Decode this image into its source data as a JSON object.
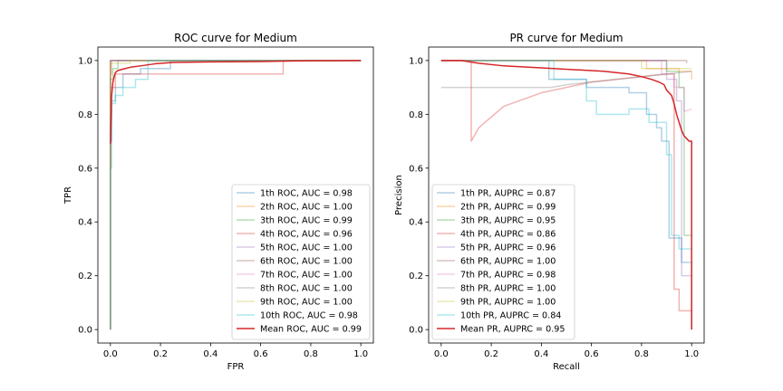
{
  "chart_data": [
    {
      "type": "line",
      "title": "ROC curve for Medium",
      "xlabel": "FPR",
      "ylabel": "TPR",
      "xlim": [
        -0.05,
        1.05
      ],
      "ylim": [
        -0.05,
        1.05
      ],
      "xticks": [
        "0.0",
        "0.2",
        "0.4",
        "0.6",
        "0.8",
        "1.0"
      ],
      "yticks": [
        "0.0",
        "0.2",
        "0.4",
        "0.6",
        "0.8",
        "1.0"
      ],
      "grid": false,
      "legend_position": "lower-right",
      "series": [
        {
          "name": "1th ROC, AUC = 0.98",
          "color": "#1f77b4",
          "alpha": 0.35,
          "x": [
            0,
            0,
            0.005,
            0.005,
            0.02,
            0.02,
            0.05,
            0.05,
            0.12,
            0.12,
            0.24,
            0.24,
            1.0
          ],
          "y": [
            0,
            0.7,
            0.7,
            0.85,
            0.85,
            0.9,
            0.9,
            0.95,
            0.95,
            0.97,
            0.97,
            1.0,
            1.0
          ]
        },
        {
          "name": "2th ROC, AUC = 1.00",
          "color": "#ff7f0e",
          "alpha": 0.35,
          "x": [
            0,
            0,
            0.005,
            0.005,
            1.0
          ],
          "y": [
            0,
            0.95,
            0.95,
            1.0,
            1.0
          ]
        },
        {
          "name": "3th ROC, AUC = 0.99",
          "color": "#2ca02c",
          "alpha": 0.35,
          "x": [
            0,
            0,
            0.01,
            0.01,
            0.03,
            0.03,
            1.0
          ],
          "y": [
            0,
            0.93,
            0.93,
            0.97,
            0.97,
            1.0,
            1.0
          ]
        },
        {
          "name": "4th ROC, AUC = 0.96",
          "color": "#d62728",
          "alpha": 0.35,
          "x": [
            0,
            0,
            0.02,
            0.02,
            0.69,
            0.69,
            1.0
          ],
          "y": [
            0,
            0.9,
            0.9,
            0.95,
            0.95,
            1.0,
            1.0
          ]
        },
        {
          "name": "5th ROC, AUC = 1.00",
          "color": "#9467bd",
          "alpha": 0.35,
          "x": [
            0,
            0,
            1.0
          ],
          "y": [
            0,
            1.0,
            1.0
          ]
        },
        {
          "name": "6th ROC, AUC = 1.00",
          "color": "#8c564b",
          "alpha": 0.35,
          "x": [
            0,
            0,
            1.0
          ],
          "y": [
            0,
            1.0,
            1.0
          ]
        },
        {
          "name": "7th ROC, AUC = 1.00",
          "color": "#e377c2",
          "alpha": 0.35,
          "x": [
            0,
            0,
            1.0
          ],
          "y": [
            0,
            1.0,
            1.0
          ]
        },
        {
          "name": "8th ROC, AUC = 1.00",
          "color": "#7f7f7f",
          "alpha": 0.35,
          "x": [
            0,
            0,
            1.0
          ],
          "y": [
            0,
            1.0,
            1.0
          ]
        },
        {
          "name": "9th ROC, AUC = 1.00",
          "color": "#bcbd22",
          "alpha": 0.35,
          "x": [
            0,
            0,
            0.08,
            0.08,
            1.0
          ],
          "y": [
            0,
            0.99,
            0.99,
            1.0,
            1.0
          ]
        },
        {
          "name": "10th ROC, AUC = 0.98",
          "color": "#17becf",
          "alpha": 0.35,
          "x": [
            0,
            0,
            0.005,
            0.005,
            0.02,
            0.02,
            0.05,
            0.05,
            0.1,
            0.1,
            0.15,
            0.15,
            1.0
          ],
          "y": [
            0,
            0.6,
            0.6,
            0.84,
            0.84,
            0.87,
            0.87,
            0.9,
            0.9,
            0.93,
            0.93,
            1.0,
            1.0
          ]
        },
        {
          "name": "Mean ROC, AUC = 0.99",
          "color": "#d62728",
          "alpha": 1.0,
          "width": 1.5,
          "x": [
            0,
            0.005,
            0.01,
            0.015,
            0.02,
            0.03,
            0.05,
            0.08,
            0.12,
            0.18,
            0.25,
            0.4,
            0.6,
            0.7,
            0.8,
            1.0
          ],
          "y": [
            0.69,
            0.87,
            0.92,
            0.94,
            0.955,
            0.963,
            0.968,
            0.975,
            0.98,
            0.988,
            0.993,
            0.995,
            0.996,
            0.998,
            0.999,
            1.0
          ]
        }
      ]
    },
    {
      "type": "line",
      "title": "PR curve for Medium",
      "xlabel": "Recall",
      "ylabel": "Precision",
      "xlim": [
        -0.05,
        1.05
      ],
      "ylim": [
        -0.05,
        1.05
      ],
      "xticks": [
        "0.0",
        "0.2",
        "0.4",
        "0.6",
        "0.8",
        "1.0"
      ],
      "yticks": [
        "0.0",
        "0.2",
        "0.4",
        "0.6",
        "0.8",
        "1.0"
      ],
      "grid": false,
      "legend_position": "lower-left",
      "series": [
        {
          "name": "1th PR, AUPRC = 0.87",
          "color": "#1f77b4",
          "alpha": 0.35,
          "x": [
            0,
            0.43,
            0.43,
            0.58,
            0.58,
            0.75,
            0.75,
            0.82,
            0.82,
            0.86,
            0.86,
            0.88,
            0.88,
            0.91,
            0.91,
            0.96,
            0.96,
            1.0,
            1.0
          ],
          "y": [
            1.0,
            1.0,
            0.93,
            0.93,
            0.9,
            0.9,
            0.88,
            0.88,
            0.8,
            0.8,
            0.75,
            0.75,
            0.7,
            0.7,
            0.34,
            0.34,
            0.25,
            0.25,
            0
          ]
        },
        {
          "name": "2th PR, AUPRC = 0.99",
          "color": "#ff7f0e",
          "alpha": 0.35,
          "x": [
            0,
            0.82,
            0.82,
            0.95,
            0.95,
            1.0,
            1.0
          ],
          "y": [
            1.0,
            1.0,
            0.97,
            0.97,
            0.96,
            0.96,
            0.93
          ]
        },
        {
          "name": "3th PR, AUPRC = 0.95",
          "color": "#2ca02c",
          "alpha": 0.35,
          "x": [
            0,
            0.9,
            0.9,
            0.95,
            0.95,
            0.97,
            0.97,
            1.0
          ],
          "y": [
            1.0,
            1.0,
            0.96,
            0.96,
            0.9,
            0.9,
            0.35,
            0.35
          ]
        },
        {
          "name": "4th PR, AUPRC = 0.86",
          "color": "#d62728",
          "alpha": 0.35,
          "x": [
            0,
            0.12,
            0.12,
            0.15,
            0.25,
            0.4,
            0.6,
            0.8,
            0.9,
            0.93,
            0.93,
            0.95,
            0.95,
            1.0
          ],
          "y": [
            1.0,
            1.0,
            0.7,
            0.75,
            0.83,
            0.88,
            0.92,
            0.94,
            0.95,
            0.95,
            0.15,
            0.15,
            0.07,
            0.07
          ]
        },
        {
          "name": "5th PR, AUPRC = 0.96",
          "color": "#9467bd",
          "alpha": 0.35,
          "x": [
            0,
            0.9,
            0.9,
            0.94,
            0.94,
            0.96,
            0.96,
            1.0
          ],
          "y": [
            1.0,
            1.0,
            0.93,
            0.93,
            0.85,
            0.85,
            0.2,
            0.2
          ]
        },
        {
          "name": "6th PR, AUPRC = 1.00",
          "color": "#8c564b",
          "alpha": 0.35,
          "x": [
            0,
            0.98,
            0.98
          ],
          "y": [
            1.0,
            1.0,
            0.99
          ]
        },
        {
          "name": "7th PR, AUPRC = 0.98",
          "color": "#e377c2",
          "alpha": 0.35,
          "x": [
            0,
            0.88,
            0.88,
            0.93,
            0.93,
            0.97,
            0.97,
            1.0
          ],
          "y": [
            1.0,
            1.0,
            0.95,
            0.95,
            0.9,
            0.9,
            0.81,
            0.82
          ]
        },
        {
          "name": "8th PR, AUPRC = 1.00",
          "color": "#7f7f7f",
          "alpha": 0.35,
          "x": [
            0,
            0.44,
            0.5,
            0.6,
            0.7,
            0.8,
            0.9,
            1.0
          ],
          "y": [
            0.9,
            0.9,
            0.91,
            0.92,
            0.93,
            0.94,
            0.95,
            0.96
          ]
        },
        {
          "name": "9th PR, AUPRC = 1.00",
          "color": "#bcbd22",
          "alpha": 0.35,
          "x": [
            0,
            0.8,
            0.8,
            1.0
          ],
          "y": [
            1.0,
            1.0,
            0.97,
            0.97
          ]
        },
        {
          "name": "10th PR, AUPRC = 0.84",
          "color": "#17becf",
          "alpha": 0.35,
          "x": [
            0,
            0.45,
            0.45,
            0.58,
            0.58,
            0.62,
            0.62,
            0.75,
            0.75,
            0.83,
            0.83,
            0.9,
            0.9,
            0.92,
            0.92,
            0.95,
            0.95,
            1.0
          ],
          "y": [
            1.0,
            1.0,
            0.93,
            0.93,
            0.85,
            0.85,
            0.8,
            0.8,
            0.82,
            0.82,
            0.77,
            0.77,
            0.65,
            0.65,
            0.35,
            0.35,
            0.3,
            0.3
          ]
        },
        {
          "name": "Mean PR, AUPRC = 0.95",
          "color": "#d62728",
          "alpha": 1.0,
          "width": 1.5,
          "x": [
            0,
            0.08,
            0.15,
            0.25,
            0.35,
            0.45,
            0.55,
            0.65,
            0.75,
            0.8,
            0.84,
            0.87,
            0.89,
            0.9,
            0.92,
            0.93,
            0.94,
            0.95,
            0.96,
            0.97,
            0.98,
            0.99,
            1.0,
            1.0
          ],
          "y": [
            1.0,
            1.0,
            0.99,
            0.98,
            0.975,
            0.97,
            0.965,
            0.96,
            0.95,
            0.94,
            0.93,
            0.92,
            0.91,
            0.89,
            0.87,
            0.84,
            0.8,
            0.77,
            0.74,
            0.72,
            0.71,
            0.7,
            0.7,
            0.0
          ]
        }
      ]
    }
  ]
}
